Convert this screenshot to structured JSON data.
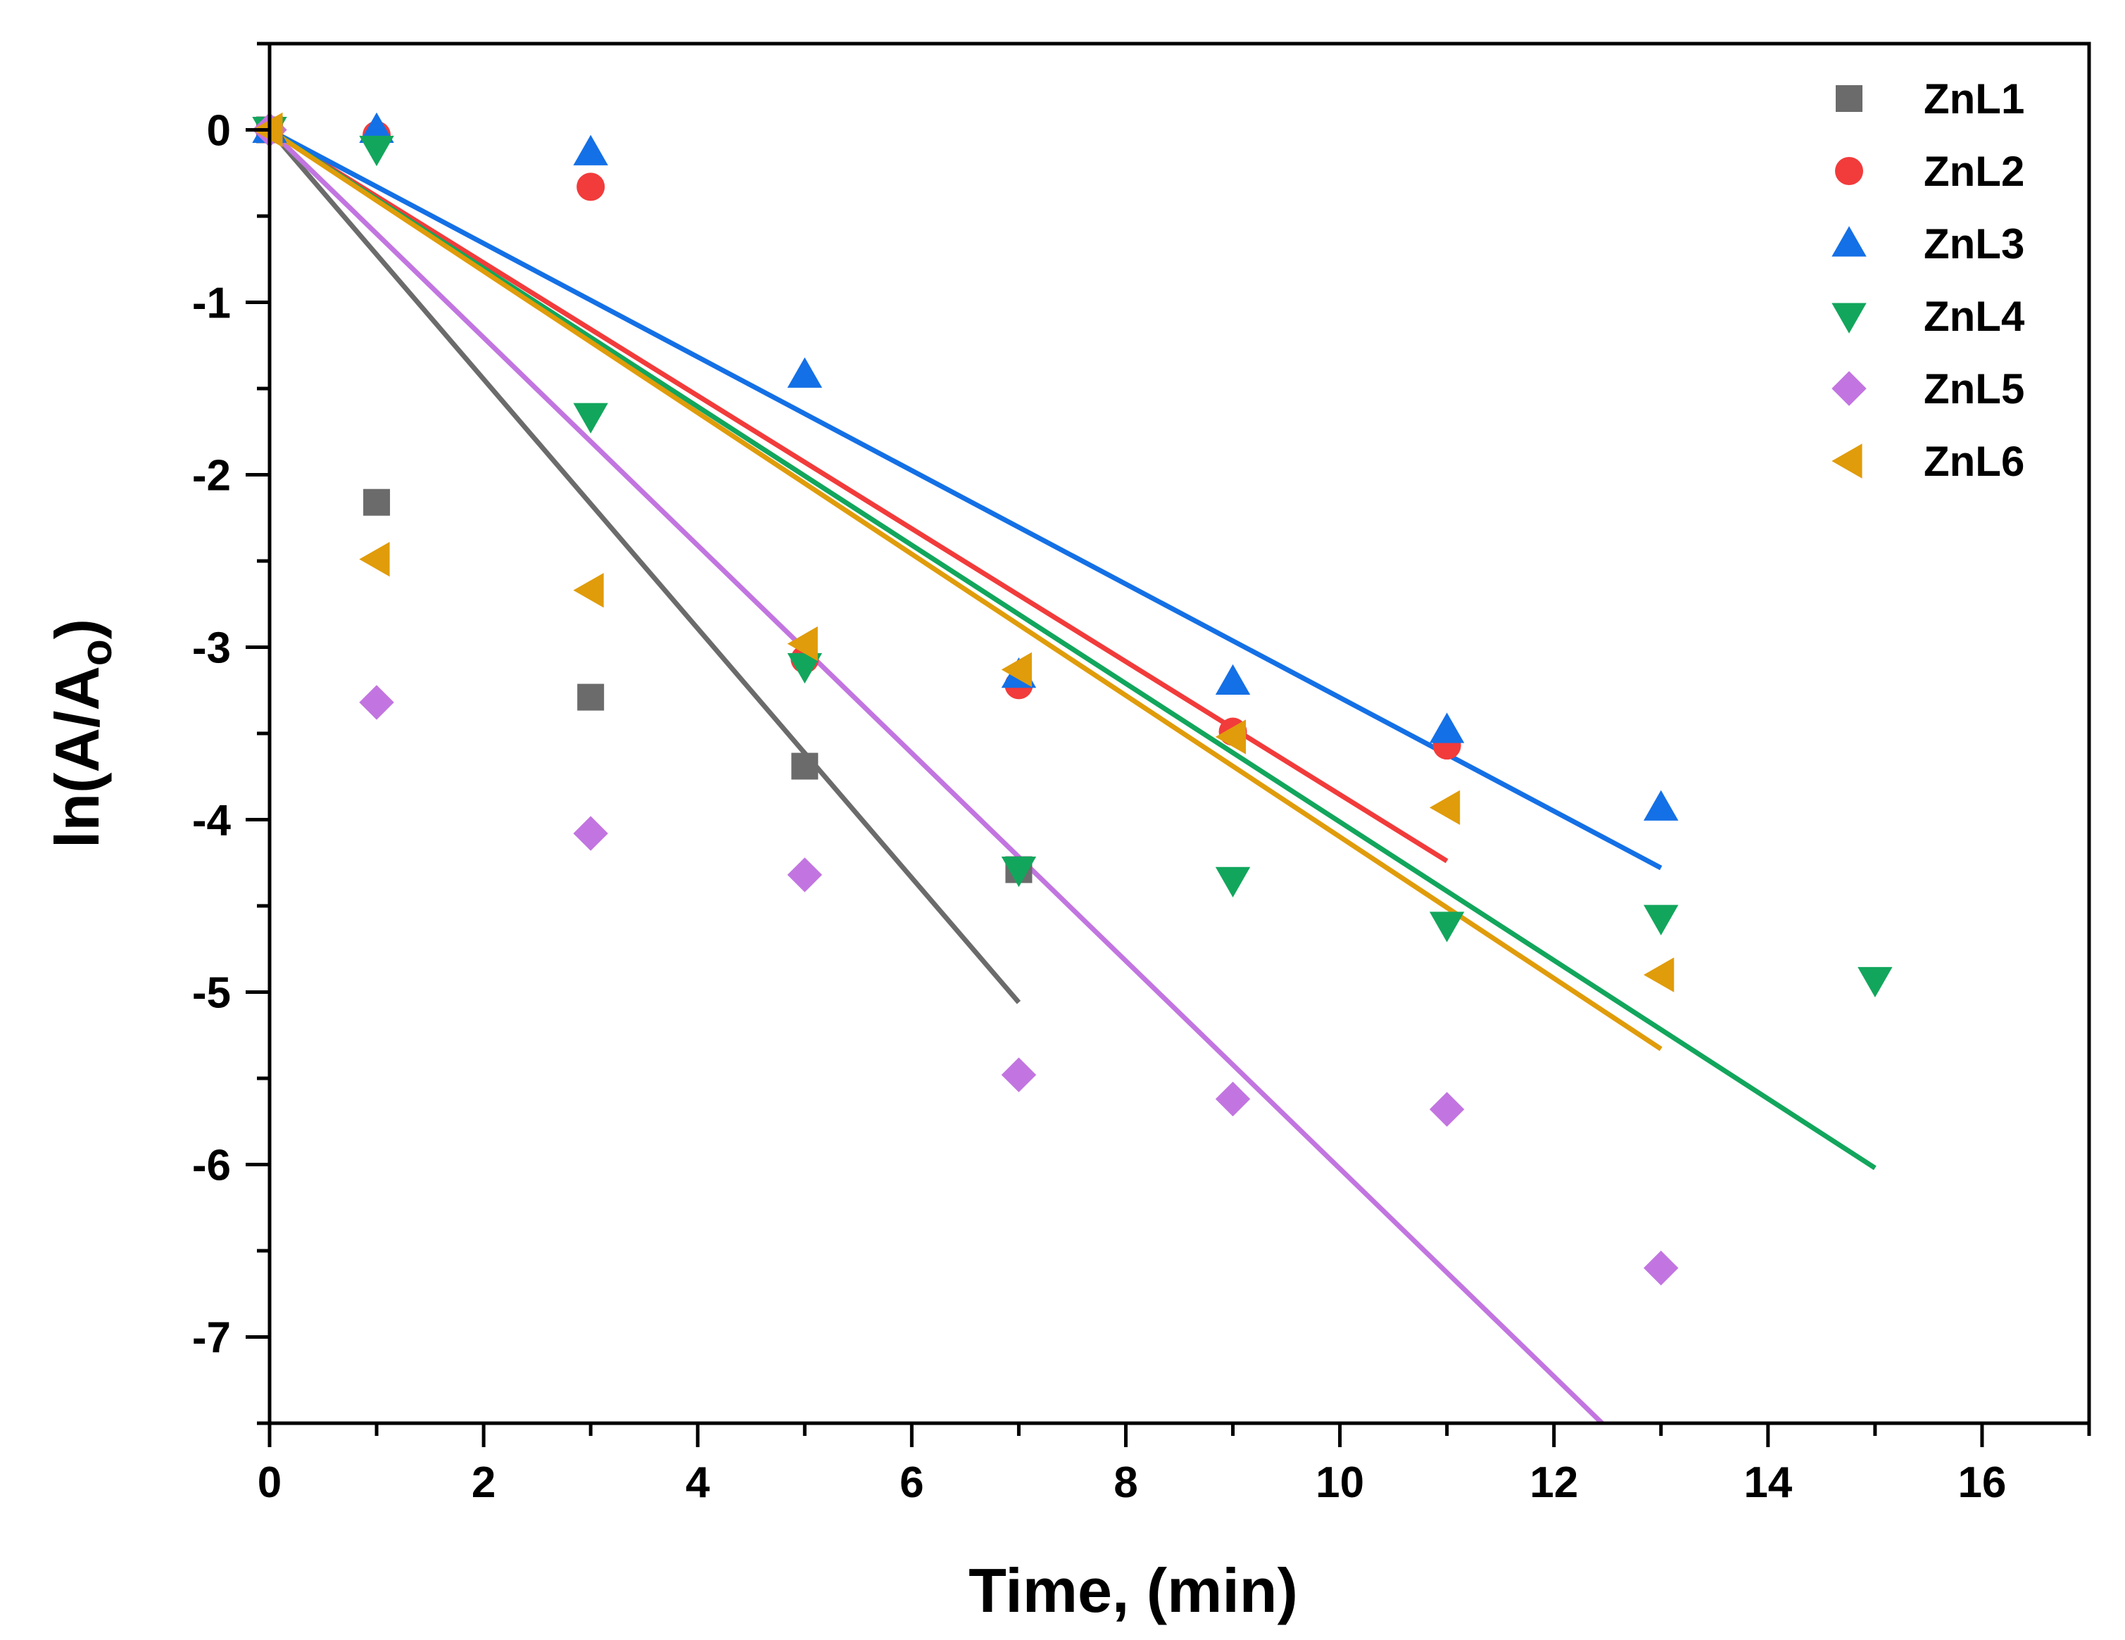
{
  "chart_data": {
    "type": "scatter",
    "title": "",
    "xlabel": "Time, (min)",
    "ylabel": "ln(A/A",
    "ylabel_subscript": "o",
    "ylabel_suffix": ")",
    "xlim": [
      0,
      17
    ],
    "ylim": [
      -7.5,
      0.5
    ],
    "x_ticks": [
      "0",
      "2",
      "4",
      "6",
      "8",
      "10",
      "12",
      "14",
      "16"
    ],
    "y_ticks": [
      "0",
      "-1",
      "-2",
      "-3",
      "-4",
      "-5",
      "-6",
      "-7"
    ],
    "grid": false,
    "legend_position": "top-right",
    "series": [
      {
        "name": "ZnL1",
        "marker": "square",
        "color": "#6b6b6b",
        "x": [
          0,
          1,
          3,
          5,
          7
        ],
        "y": [
          0,
          -2.16,
          -3.29,
          -3.69,
          -4.29
        ],
        "fit": {
          "x": [
            0,
            7
          ],
          "y": [
            0,
            -5.06
          ]
        }
      },
      {
        "name": "ZnL2",
        "marker": "circle",
        "color": "#f23b3b",
        "x": [
          0,
          1,
          3,
          5,
          7,
          9,
          11
        ],
        "y": [
          0,
          -0.03,
          -0.33,
          -3.07,
          -3.22,
          -3.49,
          -3.57
        ],
        "fit": {
          "x": [
            0,
            11
          ],
          "y": [
            0,
            -4.24
          ]
        }
      },
      {
        "name": "ZnL3",
        "marker": "triangle-up",
        "color": "#1470e6",
        "x": [
          0,
          1,
          3,
          5,
          7,
          9,
          11,
          13
        ],
        "y": [
          0,
          0,
          -0.13,
          -1.42,
          -3.16,
          -3.2,
          -3.48,
          -3.93
        ],
        "fit": {
          "x": [
            0,
            13
          ],
          "y": [
            0,
            -4.28
          ]
        }
      },
      {
        "name": "ZnL4",
        "marker": "triangle-down",
        "color": "#12a65c",
        "x": [
          0,
          1,
          3,
          5,
          7,
          9,
          11,
          13,
          15
        ],
        "y": [
          0,
          -0.11,
          -1.66,
          -3.11,
          -4.29,
          -4.35,
          -4.61,
          -4.57,
          -4.93
        ],
        "fit": {
          "x": [
            0,
            15
          ],
          "y": [
            0,
            -6.02
          ]
        }
      },
      {
        "name": "ZnL5",
        "marker": "diamond",
        "color": "#c275e0",
        "x": [
          0,
          1,
          3,
          5,
          7,
          9,
          11,
          13
        ],
        "y": [
          0,
          -3.32,
          -4.08,
          -4.32,
          -5.48,
          -5.62,
          -5.68,
          -6.6
        ],
        "fit": {
          "x": [
            0,
            12.45
          ],
          "y": [
            0,
            -7.5
          ]
        }
      },
      {
        "name": "ZnL6",
        "marker": "triangle-left",
        "color": "#e09c0a",
        "x": [
          0,
          1,
          3,
          5,
          7,
          9,
          11,
          13
        ],
        "y": [
          0,
          -2.49,
          -2.67,
          -2.98,
          -3.13,
          -3.52,
          -3.93,
          -4.9
        ],
        "fit": {
          "x": [
            0,
            13
          ],
          "y": [
            0,
            -5.33
          ]
        }
      }
    ]
  }
}
